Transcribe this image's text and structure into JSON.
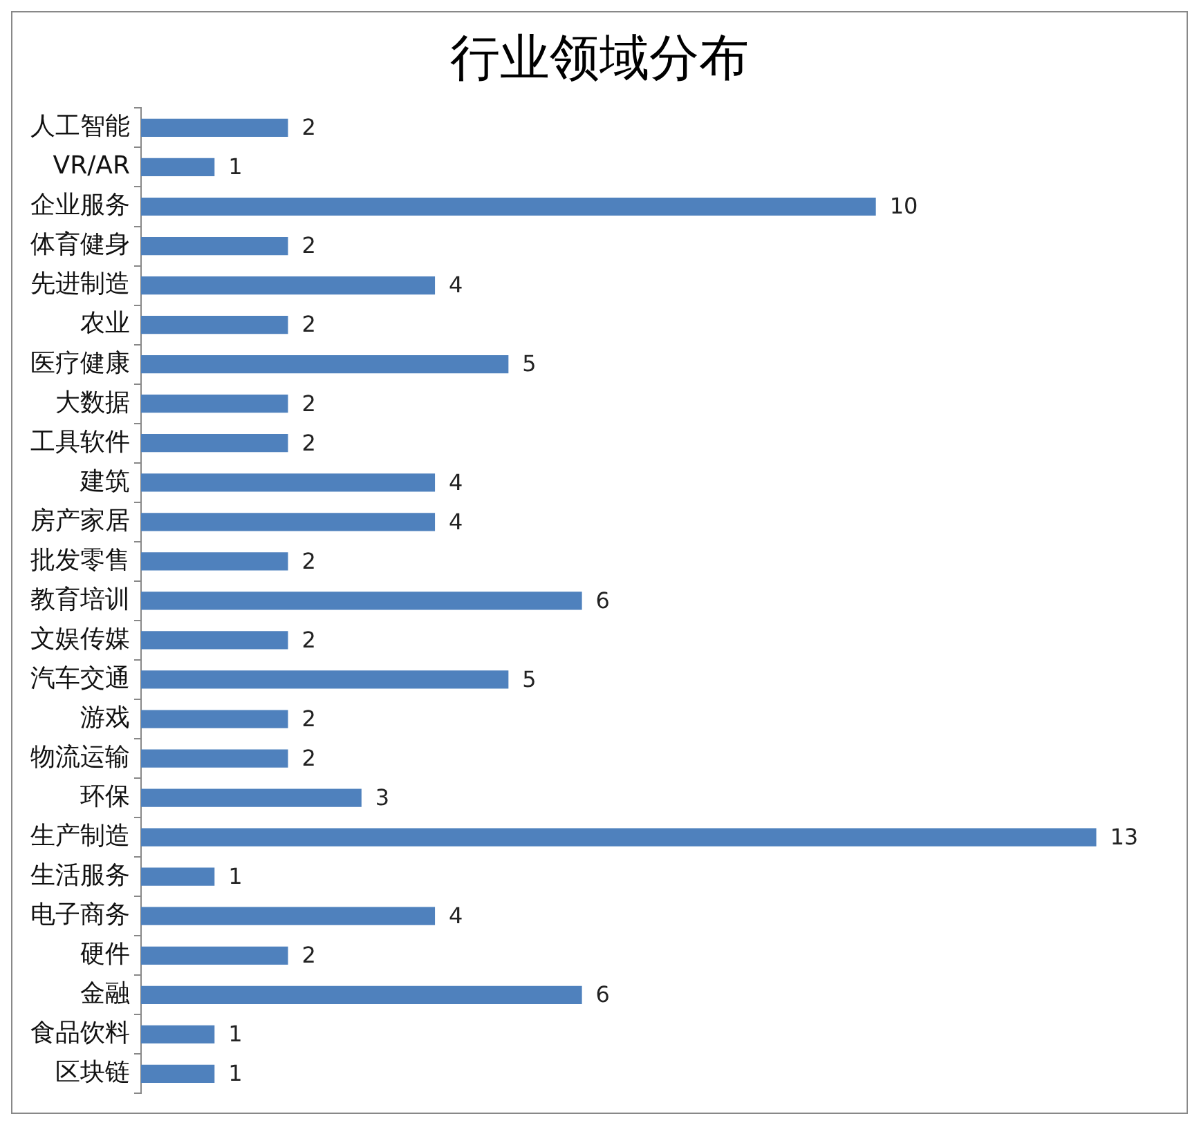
{
  "chart_data": {
    "type": "bar",
    "orientation": "horizontal",
    "title": "行业领域分布",
    "categories": [
      "人工智能",
      "VR/AR",
      "企业服务",
      "体育健身",
      "先进制造",
      "农业",
      "医疗健康",
      "大数据",
      "工具软件",
      "建筑",
      "房产家居",
      "批发零售",
      "教育培训",
      "文娱传媒",
      "汽车交通",
      "游戏",
      "物流运输",
      "环保",
      "生产制造",
      "生活服务",
      "电子商务",
      "硬件",
      "金融",
      "食品饮料",
      "区块链"
    ],
    "values": [
      2,
      1,
      10,
      2,
      4,
      2,
      5,
      2,
      2,
      4,
      4,
      2,
      6,
      2,
      5,
      2,
      2,
      3,
      13,
      1,
      4,
      2,
      6,
      1,
      1
    ],
    "color": "#4f81bd",
    "data_labels": true
  }
}
